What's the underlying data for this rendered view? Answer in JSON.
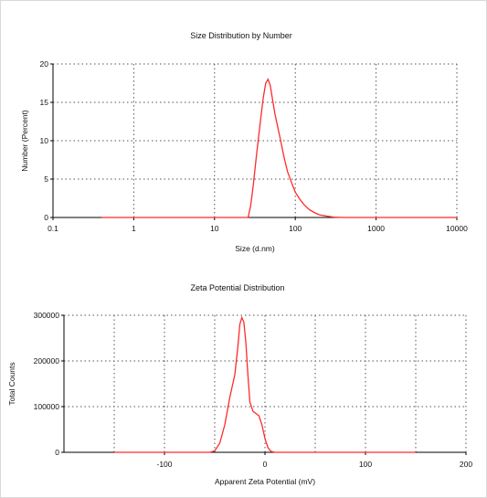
{
  "colors": {
    "series": "#ff2a2a",
    "axis": "#000000",
    "grid": "#555555"
  },
  "chart_data": [
    {
      "type": "line",
      "title": "Size Distribution by Number",
      "xlabel": "Size (d.nm)",
      "ylabel": "Number (Percent)",
      "x_scale": "log",
      "xlim": [
        0.1,
        10000
      ],
      "ylim": [
        0,
        20
      ],
      "x_ticks": [
        0.1,
        1,
        10,
        100,
        1000,
        10000
      ],
      "x_tick_labels": [
        "0.1",
        "1",
        "10",
        "100",
        "1000",
        "10000"
      ],
      "y_ticks": [
        0,
        5,
        10,
        15,
        20
      ],
      "y_tick_labels": [
        "0",
        "5",
        "10",
        "15",
        "20"
      ],
      "grid": true,
      "series": [
        {
          "x": [
            0.4,
            10,
            26,
            28,
            30,
            33,
            36,
            40,
            43,
            46,
            49,
            52,
            56,
            60,
            66,
            72,
            80,
            90,
            100,
            115,
            130,
            150,
            175,
            200,
            250,
            300,
            400,
            1000,
            10000
          ],
          "y": [
            0,
            0,
            0,
            1.5,
            4.0,
            8.0,
            11.5,
            15.5,
            17.5,
            18.0,
            17.2,
            15.5,
            13.5,
            12.0,
            10.0,
            8.0,
            6.0,
            4.5,
            3.3,
            2.3,
            1.6,
            1.0,
            0.6,
            0.35,
            0.15,
            0.05,
            0,
            0,
            0
          ]
        }
      ]
    },
    {
      "type": "line",
      "title": "Zeta Potential Distribution",
      "xlabel": "Apparent Zeta Potential (mV)",
      "ylabel": "Total Counts",
      "xlim": [
        -200,
        200
      ],
      "ylim": [
        0,
        300000
      ],
      "x_ticks": [
        -100,
        0,
        100,
        200
      ],
      "x_tick_labels": [
        "-100",
        "0",
        "100",
        "200"
      ],
      "y_ticks": [
        0,
        100000,
        200000,
        300000
      ],
      "y_tick_labels": [
        "0",
        "100000",
        "200000",
        "300000"
      ],
      "grid": true,
      "series": [
        {
          "x": [
            -150,
            -55,
            -50,
            -45,
            -40,
            -35,
            -30,
            -27,
            -25,
            -23,
            -21,
            -19,
            -17,
            -15,
            -12,
            -9,
            -6,
            -3,
            0,
            3,
            6,
            10,
            150
          ],
          "y": [
            0,
            0,
            3000,
            20000,
            60000,
            120000,
            170000,
            230000,
            280000,
            295000,
            285000,
            240000,
            170000,
            110000,
            90000,
            85000,
            80000,
            60000,
            30000,
            10000,
            2000,
            0,
            0
          ]
        }
      ]
    }
  ]
}
